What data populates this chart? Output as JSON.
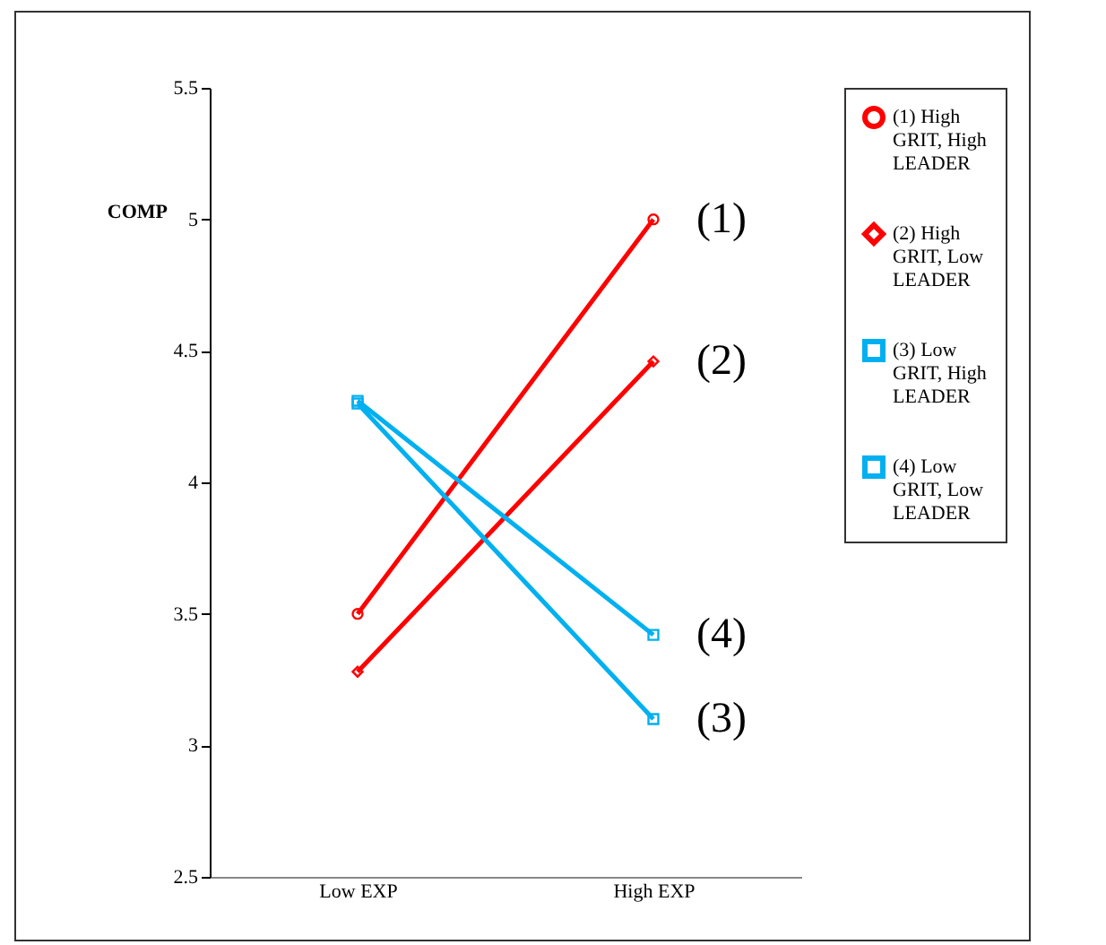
{
  "chart_data": {
    "type": "line",
    "ylabel": "COMP",
    "categories": [
      "Low EXP",
      "High EXP"
    ],
    "ylim": [
      2.5,
      5.5
    ],
    "yticks": [
      2.5,
      3,
      3.5,
      4,
      4.5,
      5,
      5.5
    ],
    "grid": false,
    "legend": "right",
    "line_style": "solid",
    "series": [
      {
        "name": "(1) High GRIT, High LEADER",
        "color": "#ff0000",
        "marker": "circle",
        "values": [
          3.5,
          5.0
        ]
      },
      {
        "name": "(2) High GRIT, Low LEADER",
        "color": "#ff0000",
        "marker": "diamond",
        "values": [
          3.28,
          4.46
        ]
      },
      {
        "name": "(3) Low GRIT, High LEADER",
        "color": "#00b0f0",
        "marker": "square",
        "values": [
          4.3,
          3.1
        ]
      },
      {
        "name": "(4) Low GRIT, Low LEADER",
        "color": "#00b0f0",
        "marker": "square",
        "values": [
          4.31,
          3.42
        ]
      }
    ],
    "annotations": [
      {
        "text": "(1)",
        "x": "High EXP",
        "y": 5.0
      },
      {
        "text": "(2)",
        "x": "High EXP",
        "y": 4.46
      },
      {
        "text": "(4)",
        "x": "High EXP",
        "y": 3.42
      },
      {
        "text": "(3)",
        "x": "High EXP",
        "y": 3.1
      }
    ]
  }
}
